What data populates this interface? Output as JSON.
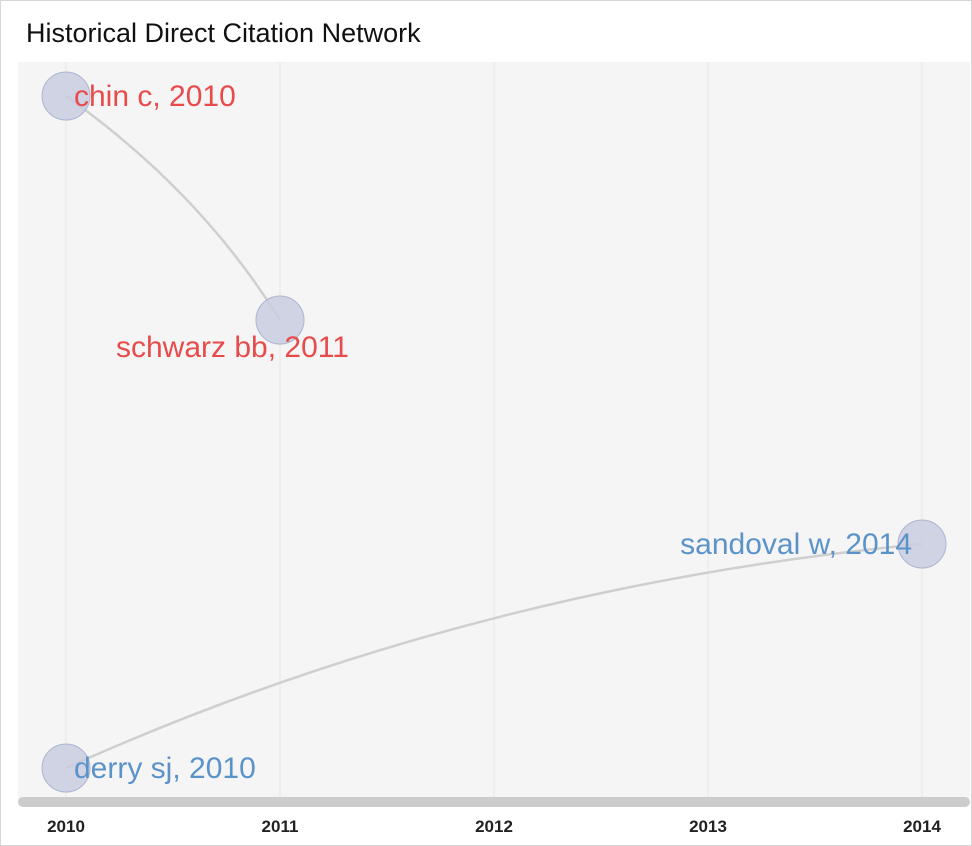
{
  "chart_data": {
    "type": "network",
    "title": "Historical Direct Citation Network",
    "x_ticks": [
      2010,
      2011,
      2012,
      2013,
      2014
    ],
    "xlim": [
      2010,
      2014
    ],
    "grid": true,
    "nodes": [
      {
        "id": "chin",
        "label": "chin c, 2010",
        "year": 2010,
        "rank": 0,
        "label_side": "right",
        "color": "#e84b4b"
      },
      {
        "id": "schwarz",
        "label": "schwarz bb, 2011",
        "year": 2011,
        "rank": 1,
        "label_side": "below",
        "color": "#e84b4b"
      },
      {
        "id": "sandoval",
        "label": "sandoval w, 2014",
        "year": 2014,
        "rank": 2,
        "label_side": "left",
        "color": "#5b93c9"
      },
      {
        "id": "derry",
        "label": "derry sj, 2010",
        "year": 2010,
        "rank": 3,
        "label_side": "right",
        "color": "#5b93c9"
      }
    ],
    "edges": [
      {
        "from": "chin",
        "to": "schwarz"
      },
      {
        "from": "derry",
        "to": "sandoval"
      }
    ],
    "colors": {
      "node_fill": "#c8cde0",
      "node_stroke": "#aeb5cf",
      "edge": "#cfcfcf",
      "plot_bg": "#f5f5f5",
      "grid": "#e6e6e6",
      "axis_bar": "#cccccc"
    }
  }
}
